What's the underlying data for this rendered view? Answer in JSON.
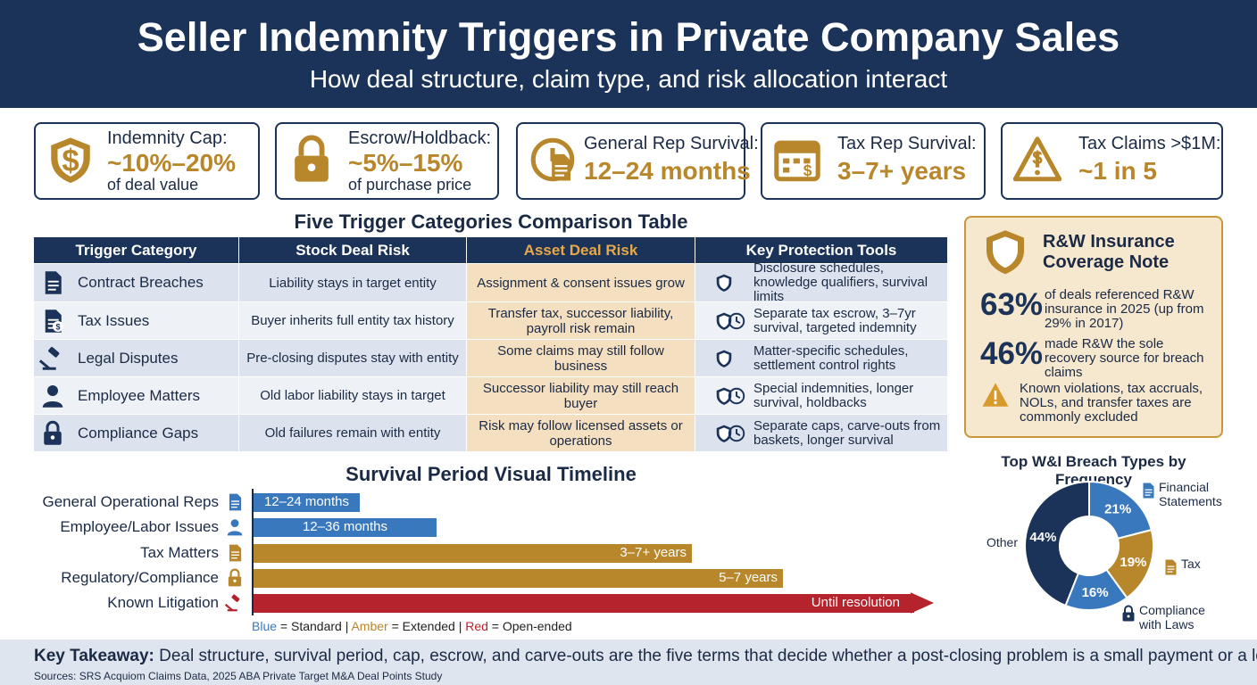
{
  "header": {
    "title": "Seller Indemnity Triggers in Private Company Sales",
    "subtitle": "How deal structure, claim type, and risk allocation interact"
  },
  "stats": [
    {
      "label": "Indemnity Cap:",
      "value": "~10%–20%",
      "note": "of deal value"
    },
    {
      "label": "Escrow/Holdback:",
      "value": "~5%–15%",
      "note": "of purchase price"
    },
    {
      "label": "General Rep Survival:",
      "value": "12–24 months"
    },
    {
      "label": "Tax Rep Survival:",
      "value": "3–7+ years"
    },
    {
      "label": "Tax Claims >$1M:",
      "value": "~1 in 5"
    }
  ],
  "table": {
    "title": "Five Trigger Categories Comparison Table",
    "columns": [
      "Trigger Category",
      "Stock Deal Risk",
      "Asset Deal Risk",
      "Key Protection Tools"
    ],
    "rows": [
      [
        "Contract Breaches",
        "Liability stays in target entity",
        "Assignment & consent issues grow",
        "Disclosure schedules, knowledge qualifiers, survival limits"
      ],
      [
        "Tax Issues",
        "Buyer inherits full entity tax history",
        "Transfer tax, successor liability, payroll risk remain",
        "Separate tax escrow, 3–7yr survival, targeted indemnity"
      ],
      [
        "Legal Disputes",
        "Pre-closing disputes stay with entity",
        "Some claims may still follow business",
        "Matter-specific schedules, settlement control rights"
      ],
      [
        "Employee Matters",
        "Old labor liability stays in target",
        "Successor liability may still reach buyer",
        "Special indemnities, longer survival, holdbacks"
      ],
      [
        "Compliance Gaps",
        "Old failures remain with entity",
        "Risk may follow licensed assets or operations",
        "Separate caps, carve-outs from baskets, longer survival"
      ]
    ]
  },
  "timeline": {
    "title": "Survival Period Visual Timeline",
    "items": [
      {
        "label": "General Operational Reps",
        "period": "12–24 months"
      },
      {
        "label": "Employee/Labor Issues",
        "period": "12–36 months"
      },
      {
        "label": "Tax Matters",
        "period": "3–7+ years"
      },
      {
        "label": "Regulatory/Compliance",
        "period": "5–7 years"
      },
      {
        "label": "Known Litigation",
        "period": "Until resolution"
      }
    ],
    "legend": [
      "Blue",
      " = Standard | ",
      "Amber",
      " = Extended | ",
      "Red",
      " = Open-ended"
    ]
  },
  "insurance": {
    "title": "R&W Insurance Coverage Note",
    "stats": [
      {
        "value": "63%",
        "text": "of deals referenced R&W insurance in 2025 (up from 29% in 2017)"
      },
      {
        "value": "46%",
        "text": "made R&W the sole recovery source for breach claims"
      }
    ],
    "note": "Known violations, tax accruals, NOLs, and transfer taxes are commonly excluded"
  },
  "chart_data": {
    "type": "pie",
    "title": "Top W&I Breach Types by Frequency",
    "categories": [
      "Financial Statements",
      "Tax",
      "Compliance with Laws",
      "Other"
    ],
    "values": [
      21,
      19,
      16,
      44
    ],
    "value_labels": [
      "21%",
      "19%",
      "16%",
      "44%"
    ],
    "colors": [
      "#3a78be",
      "#b8862b",
      "#3a78be",
      "#1b3358"
    ]
  },
  "footer": {
    "label": "Key Takeaway:",
    "text": " Deal structure, survival period, cap, escrow, and carve-outs are the five terms that decide whether a post-closing problem is a small payment or a long fight.",
    "sources": "Sources: SRS Acquiom Claims Data, 2025 ABA Private Target M&A Deal Points Study"
  }
}
